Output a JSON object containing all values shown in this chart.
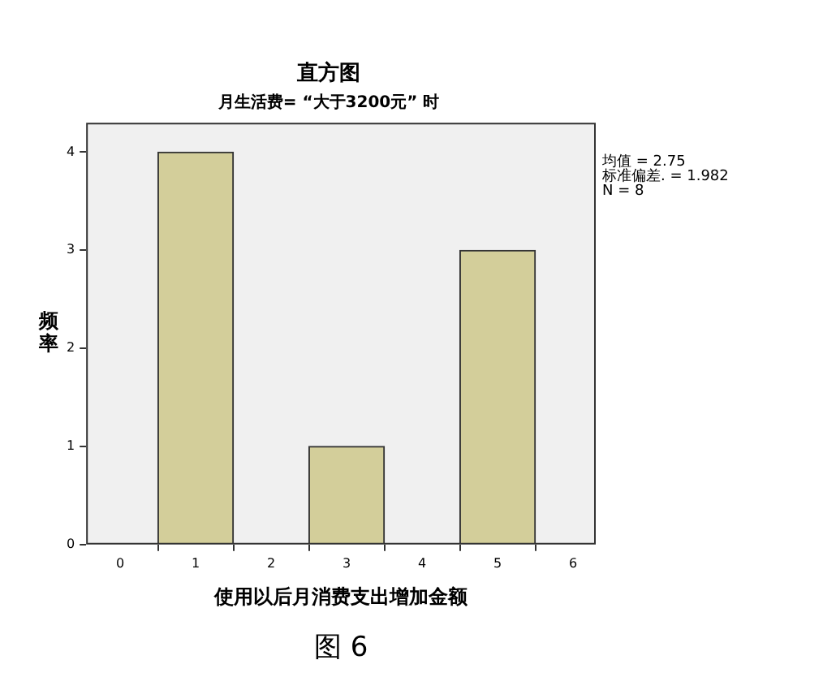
{
  "chart_data": {
    "type": "histogram",
    "title": "直方图",
    "subtitle": "月生活费= “大于3200元” 时",
    "xlabel": "使用以后月消费支出增加金额",
    "ylabel": "频率",
    "bins": [
      0,
      2,
      4,
      6
    ],
    "values": [
      4,
      1,
      3
    ],
    "color": "#d3ce9a",
    "xlim": [
      -0.45,
      6.3
    ],
    "xticks": [
      0,
      1,
      2,
      3,
      4,
      5,
      6
    ],
    "ylim": [
      0,
      4.3
    ],
    "yticks": [
      0,
      1,
      2,
      3,
      4
    ],
    "grid": false,
    "legend": false,
    "annotations": [
      "均值 = 2.75",
      "标准偏差. = 1.982",
      "N = 8",
      "图 6"
    ]
  }
}
